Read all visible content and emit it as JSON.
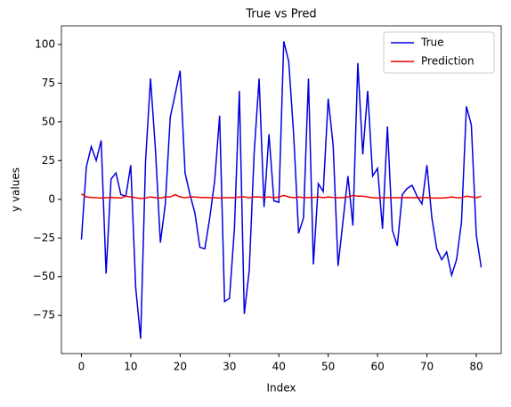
{
  "chart_data": {
    "type": "line",
    "title": "True vs Pred",
    "xlabel": "Index",
    "ylabel": "y values",
    "x": [
      0,
      1,
      2,
      3,
      4,
      5,
      6,
      7,
      8,
      9,
      10,
      11,
      12,
      13,
      14,
      15,
      16,
      17,
      18,
      19,
      20,
      21,
      22,
      23,
      24,
      25,
      26,
      27,
      28,
      29,
      30,
      31,
      32,
      33,
      34,
      35,
      36,
      37,
      38,
      39,
      40,
      41,
      42,
      43,
      44,
      45,
      46,
      47,
      48,
      49,
      50,
      51,
      52,
      53,
      54,
      55,
      56,
      57,
      58,
      59,
      60,
      61,
      62,
      63,
      64,
      65,
      66,
      67,
      68,
      69,
      70,
      71,
      72,
      73,
      74,
      75,
      76,
      77,
      78,
      79,
      80,
      81
    ],
    "series": [
      {
        "name": "True",
        "color": "#0000dd",
        "values": [
          -26,
          21,
          34,
          25,
          38,
          -48,
          13,
          17,
          3,
          2,
          22,
          -57,
          -90,
          25,
          78,
          32,
          -28,
          -3,
          53,
          68,
          83,
          17,
          3,
          -9,
          -31,
          -32,
          -12,
          12,
          54,
          -66,
          -64,
          -19,
          70,
          -74,
          -46,
          30,
          78,
          -5,
          42,
          -1,
          -2,
          102,
          89,
          42,
          -22,
          -12,
          78,
          -42,
          10,
          5,
          65,
          35,
          -43,
          -14,
          15,
          -17,
          88,
          29,
          70,
          15,
          20,
          -19,
          47,
          -20,
          -30,
          3,
          7,
          9,
          2,
          -3,
          22,
          -12,
          -32,
          -39,
          -34,
          -49,
          -39,
          -15,
          60,
          48,
          -23,
          -44
        ]
      },
      {
        "name": "Prediction",
        "color": "#ee0000",
        "values": [
          3.5,
          1.5,
          1.2,
          1,
          0.8,
          1,
          1.2,
          1,
          0.8,
          2,
          1.5,
          1,
          0.5,
          0.8,
          1.5,
          1,
          0.8,
          1.5,
          1.5,
          3,
          1.5,
          1,
          1.5,
          1.5,
          1.2,
          1.2,
          1,
          1,
          0.8,
          1,
          1,
          1,
          1.5,
          1.5,
          1,
          1.5,
          1.5,
          1,
          1.5,
          1,
          1.5,
          2.5,
          1.5,
          1,
          1.5,
          1,
          1.2,
          1.2,
          1.5,
          1,
          1.5,
          1.2,
          1,
          1,
          1.5,
          2.5,
          2,
          2,
          1.5,
          1,
          0.8,
          1,
          1,
          1,
          1,
          1,
          1.2,
          1,
          1,
          1,
          1.2,
          0.8,
          0.8,
          0.8,
          1,
          1.5,
          1,
          1,
          2,
          1.5,
          1,
          2
        ]
      }
    ],
    "xlim": [
      -4.05,
      85.05
    ],
    "xticks": [
      0,
      10,
      20,
      30,
      40,
      50,
      60,
      70,
      80
    ],
    "ylim": [
      -99.6,
      112
    ],
    "yticks": [
      {
        "value": -75,
        "label": "−75"
      },
      {
        "value": -50,
        "label": "−50"
      },
      {
        "value": -25,
        "label": "−25"
      },
      0,
      25,
      50,
      75,
      100
    ],
    "legend": "upper right"
  }
}
